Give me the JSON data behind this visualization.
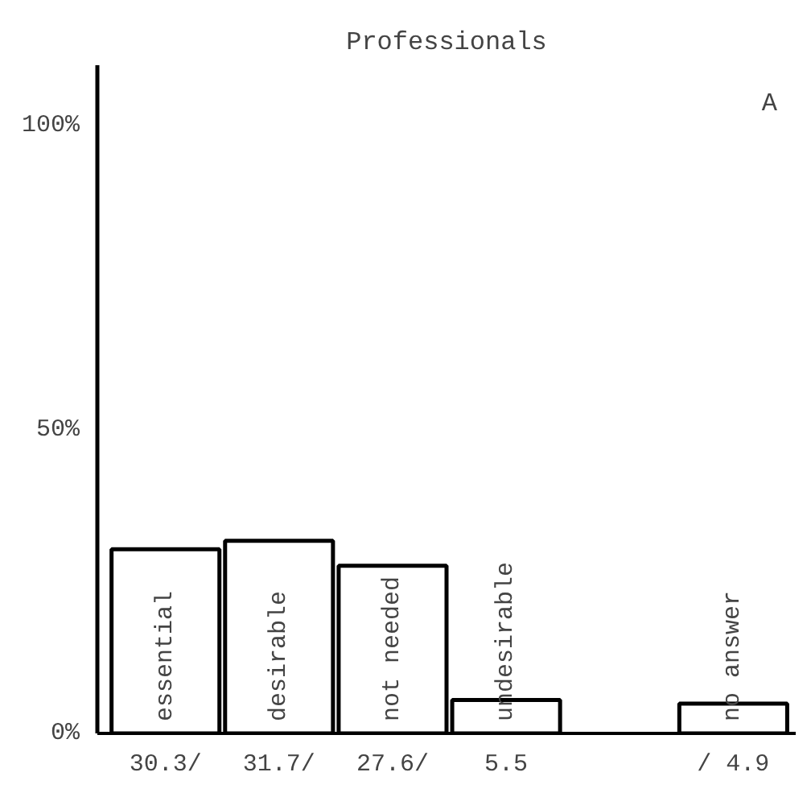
{
  "chart_data": {
    "type": "bar",
    "title": "Professionals",
    "annotations": [
      "A"
    ],
    "categories": [
      "essential",
      "desirable",
      "not needed",
      "undesirable",
      null,
      "no answer"
    ],
    "values": [
      30.3,
      31.7,
      27.6,
      5.5,
      null,
      4.9
    ],
    "value_labels": [
      "30.3/",
      "31.7/",
      "27.6/",
      "5.5",
      null,
      "/ 4.9"
    ],
    "color": "#ffffff",
    "ylim": [
      0,
      110
    ],
    "yticks": [
      {
        "value": 0,
        "label": "0%"
      },
      {
        "value": 50,
        "label": "50%"
      },
      {
        "value": 100,
        "label": "100%"
      }
    ],
    "grid": false
  }
}
